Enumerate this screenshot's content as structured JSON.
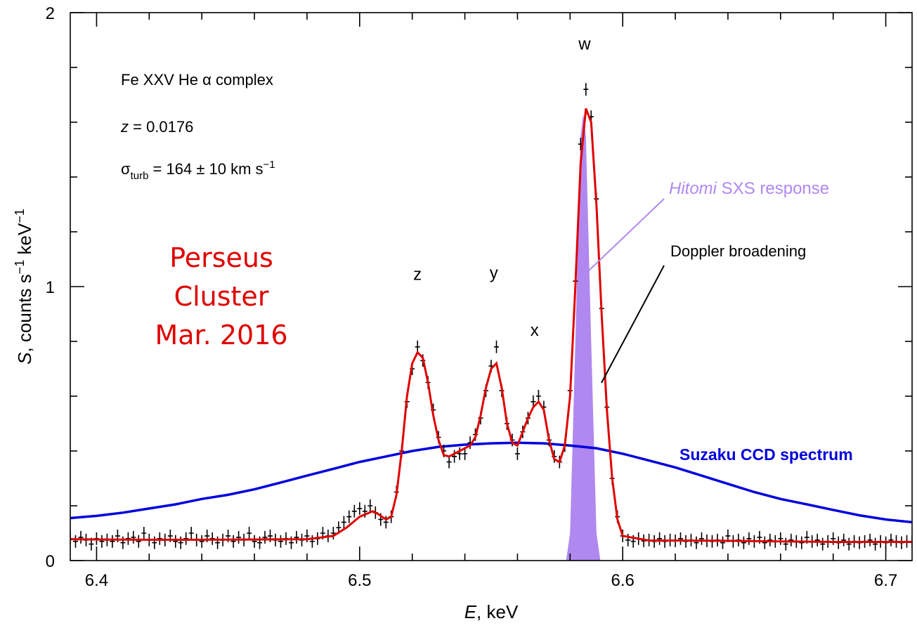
{
  "chart_data": {
    "type": "line",
    "xlabel_italic": "E",
    "xlabel_rest": ", keV",
    "ylabel_italic": "S",
    "ylabel_rest": ", counts s",
    "ylabel_sup1": "−1",
    "ylabel_kev": " keV",
    "ylabel_sup2": "−1",
    "xlim": [
      6.39,
      6.71
    ],
    "ylim": [
      0,
      2
    ],
    "x_ticks": [
      6.4,
      6.5,
      6.6,
      6.7
    ],
    "x_tick_labels": [
      "6.4",
      "6.5",
      "6.6",
      "6.7"
    ],
    "y_ticks": [
      0,
      1,
      2
    ],
    "y_tick_labels": [
      "0",
      "1",
      "2"
    ],
    "annotations": {
      "title": "Fe XXV He α complex",
      "redshift_var": "z",
      "redshift_value": " = 0.0176",
      "sigma_symbol": "σ",
      "sigma_sub": "turb",
      "sigma_value": " = 164 ± 10 km s",
      "sigma_sup": "−1",
      "cluster_line1": "Perseus",
      "cluster_line2": "Cluster",
      "cluster_line3": "Mar. 2016",
      "hitomi_italic": "Hitomi",
      "hitomi_rest": " SXS response",
      "doppler": "Doppler broadening",
      "suzaku": "Suzaku CCD spectrum"
    },
    "line_labels": [
      {
        "text": "z",
        "x": 6.522,
        "y": 1.025
      },
      {
        "text": "y",
        "x": 6.551,
        "y": 1.03
      },
      {
        "text": "x",
        "x": 6.5665,
        "y": 0.82
      },
      {
        "text": "w",
        "x": 6.5855,
        "y": 1.865
      }
    ],
    "colors": {
      "model": "#e00000",
      "suzaku": "#0000dd",
      "hitomi": "#b088f0",
      "data": "#000000",
      "cluster_text": "#e00000"
    },
    "series": [
      {
        "name": "Suzaku CCD spectrum",
        "x": [
          6.39,
          6.4,
          6.41,
          6.42,
          6.43,
          6.44,
          6.45,
          6.46,
          6.47,
          6.48,
          6.49,
          6.5,
          6.51,
          6.52,
          6.53,
          6.54,
          6.55,
          6.56,
          6.57,
          6.58,
          6.59,
          6.6,
          6.61,
          6.62,
          6.63,
          6.64,
          6.65,
          6.66,
          6.67,
          6.68,
          6.69,
          6.7,
          6.71
        ],
        "y": [
          0.155,
          0.163,
          0.175,
          0.19,
          0.205,
          0.225,
          0.24,
          0.26,
          0.285,
          0.31,
          0.335,
          0.36,
          0.38,
          0.4,
          0.415,
          0.423,
          0.428,
          0.43,
          0.428,
          0.42,
          0.41,
          0.39,
          0.365,
          0.34,
          0.31,
          0.28,
          0.25,
          0.225,
          0.205,
          0.185,
          0.165,
          0.15,
          0.14
        ]
      },
      {
        "name": "model",
        "x": [
          6.39,
          6.4,
          6.42,
          6.44,
          6.46,
          6.48,
          6.49,
          6.495,
          6.5,
          6.505,
          6.507,
          6.51,
          6.512,
          6.514,
          6.516,
          6.518,
          6.52,
          6.522,
          6.524,
          6.526,
          6.528,
          6.53,
          6.532,
          6.534,
          6.536,
          6.538,
          6.54,
          6.542,
          6.544,
          6.546,
          6.548,
          6.55,
          6.552,
          6.554,
          6.556,
          6.558,
          6.56,
          6.562,
          6.564,
          6.566,
          6.568,
          6.57,
          6.572,
          6.574,
          6.576,
          6.578,
          6.58,
          6.582,
          6.584,
          6.586,
          6.588,
          6.59,
          6.592,
          6.594,
          6.596,
          6.598,
          6.6,
          6.61,
          6.62,
          6.64,
          6.66,
          6.68,
          6.7,
          6.71
        ],
        "y": [
          0.078,
          0.077,
          0.076,
          0.076,
          0.077,
          0.078,
          0.09,
          0.12,
          0.16,
          0.18,
          0.17,
          0.15,
          0.16,
          0.24,
          0.4,
          0.6,
          0.72,
          0.76,
          0.74,
          0.65,
          0.53,
          0.44,
          0.385,
          0.38,
          0.39,
          0.4,
          0.41,
          0.42,
          0.45,
          0.53,
          0.63,
          0.7,
          0.72,
          0.63,
          0.5,
          0.43,
          0.42,
          0.47,
          0.52,
          0.56,
          0.58,
          0.55,
          0.44,
          0.37,
          0.36,
          0.42,
          0.6,
          1.0,
          1.45,
          1.65,
          1.6,
          1.3,
          0.9,
          0.55,
          0.3,
          0.15,
          0.09,
          0.073,
          0.073,
          0.072,
          0.07,
          0.068,
          0.068,
          0.068
        ]
      },
      {
        "name": "Hitomi SXS response",
        "x": [
          6.5785,
          6.58,
          6.582,
          6.584,
          6.585,
          6.586,
          6.588,
          6.59,
          6.5915
        ],
        "y": [
          0.0,
          0.1,
          0.8,
          1.55,
          1.63,
          1.55,
          0.8,
          0.1,
          0.0
        ]
      },
      {
        "name": "data",
        "x": [
          6.39,
          6.392,
          6.394,
          6.396,
          6.398,
          6.4,
          6.402,
          6.404,
          6.406,
          6.408,
          6.41,
          6.412,
          6.414,
          6.416,
          6.418,
          6.42,
          6.422,
          6.424,
          6.426,
          6.428,
          6.43,
          6.432,
          6.434,
          6.436,
          6.438,
          6.44,
          6.442,
          6.444,
          6.446,
          6.448,
          6.45,
          6.452,
          6.454,
          6.456,
          6.458,
          6.46,
          6.462,
          6.464,
          6.466,
          6.468,
          6.47,
          6.472,
          6.474,
          6.476,
          6.478,
          6.48,
          6.482,
          6.484,
          6.486,
          6.488,
          6.49,
          6.492,
          6.494,
          6.496,
          6.498,
          6.5,
          6.502,
          6.504,
          6.506,
          6.508,
          6.51,
          6.512,
          6.514,
          6.516,
          6.518,
          6.52,
          6.522,
          6.524,
          6.526,
          6.528,
          6.53,
          6.532,
          6.534,
          6.536,
          6.538,
          6.54,
          6.542,
          6.544,
          6.546,
          6.548,
          6.55,
          6.552,
          6.554,
          6.556,
          6.558,
          6.56,
          6.562,
          6.564,
          6.566,
          6.568,
          6.57,
          6.572,
          6.574,
          6.576,
          6.578,
          6.58,
          6.582,
          6.584,
          6.586,
          6.588,
          6.59,
          6.592,
          6.594,
          6.596,
          6.598,
          6.6,
          6.602,
          6.604,
          6.606,
          6.608,
          6.61,
          6.612,
          6.614,
          6.616,
          6.618,
          6.62,
          6.622,
          6.624,
          6.626,
          6.628,
          6.63,
          6.632,
          6.634,
          6.636,
          6.638,
          6.64,
          6.642,
          6.644,
          6.646,
          6.648,
          6.65,
          6.652,
          6.654,
          6.656,
          6.658,
          6.66,
          6.662,
          6.664,
          6.666,
          6.668,
          6.67,
          6.672,
          6.674,
          6.676,
          6.678,
          6.68,
          6.682,
          6.684,
          6.686,
          6.688,
          6.69,
          6.692,
          6.694,
          6.696,
          6.698,
          6.7,
          6.702,
          6.704,
          6.706,
          6.708,
          6.71
        ],
        "y": [
          0.08,
          0.07,
          0.085,
          0.075,
          0.06,
          0.08,
          0.07,
          0.075,
          0.07,
          0.09,
          0.065,
          0.08,
          0.085,
          0.07,
          0.1,
          0.075,
          0.065,
          0.08,
          0.075,
          0.09,
          0.07,
          0.065,
          0.08,
          0.1,
          0.075,
          0.07,
          0.09,
          0.08,
          0.065,
          0.075,
          0.09,
          0.07,
          0.085,
          0.075,
          0.1,
          0.07,
          0.065,
          0.085,
          0.09,
          0.075,
          0.07,
          0.08,
          0.065,
          0.085,
          0.075,
          0.09,
          0.07,
          0.08,
          0.1,
          0.09,
          0.1,
          0.12,
          0.14,
          0.16,
          0.18,
          0.19,
          0.18,
          0.2,
          0.175,
          0.15,
          0.14,
          0.16,
          0.25,
          0.4,
          0.58,
          0.7,
          0.78,
          0.73,
          0.65,
          0.55,
          0.45,
          0.4,
          0.36,
          0.38,
          0.39,
          0.39,
          0.43,
          0.46,
          0.52,
          0.62,
          0.71,
          0.78,
          0.62,
          0.5,
          0.44,
          0.39,
          0.47,
          0.52,
          0.58,
          0.6,
          0.56,
          0.44,
          0.38,
          0.36,
          0.42,
          0.62,
          1.02,
          1.52,
          1.72,
          1.62,
          1.32,
          0.92,
          0.56,
          0.3,
          0.16,
          0.09,
          0.075,
          0.07,
          0.08,
          0.072,
          0.075,
          0.07,
          0.08,
          0.07,
          0.075,
          0.072,
          0.08,
          0.07,
          0.075,
          0.065,
          0.08,
          0.072,
          0.07,
          0.075,
          0.065,
          0.09,
          0.07,
          0.075,
          0.065,
          0.08,
          0.07,
          0.085,
          0.065,
          0.075,
          0.07,
          0.08,
          0.06,
          0.075,
          0.07,
          0.065,
          0.085,
          0.07,
          0.075,
          0.06,
          0.07,
          0.08,
          0.065,
          0.075,
          0.06,
          0.07,
          0.065,
          0.07,
          0.075,
          0.06,
          0.07,
          0.065,
          0.075,
          0.07,
          0.065,
          0.07,
          0.068
        ]
      }
    ]
  }
}
